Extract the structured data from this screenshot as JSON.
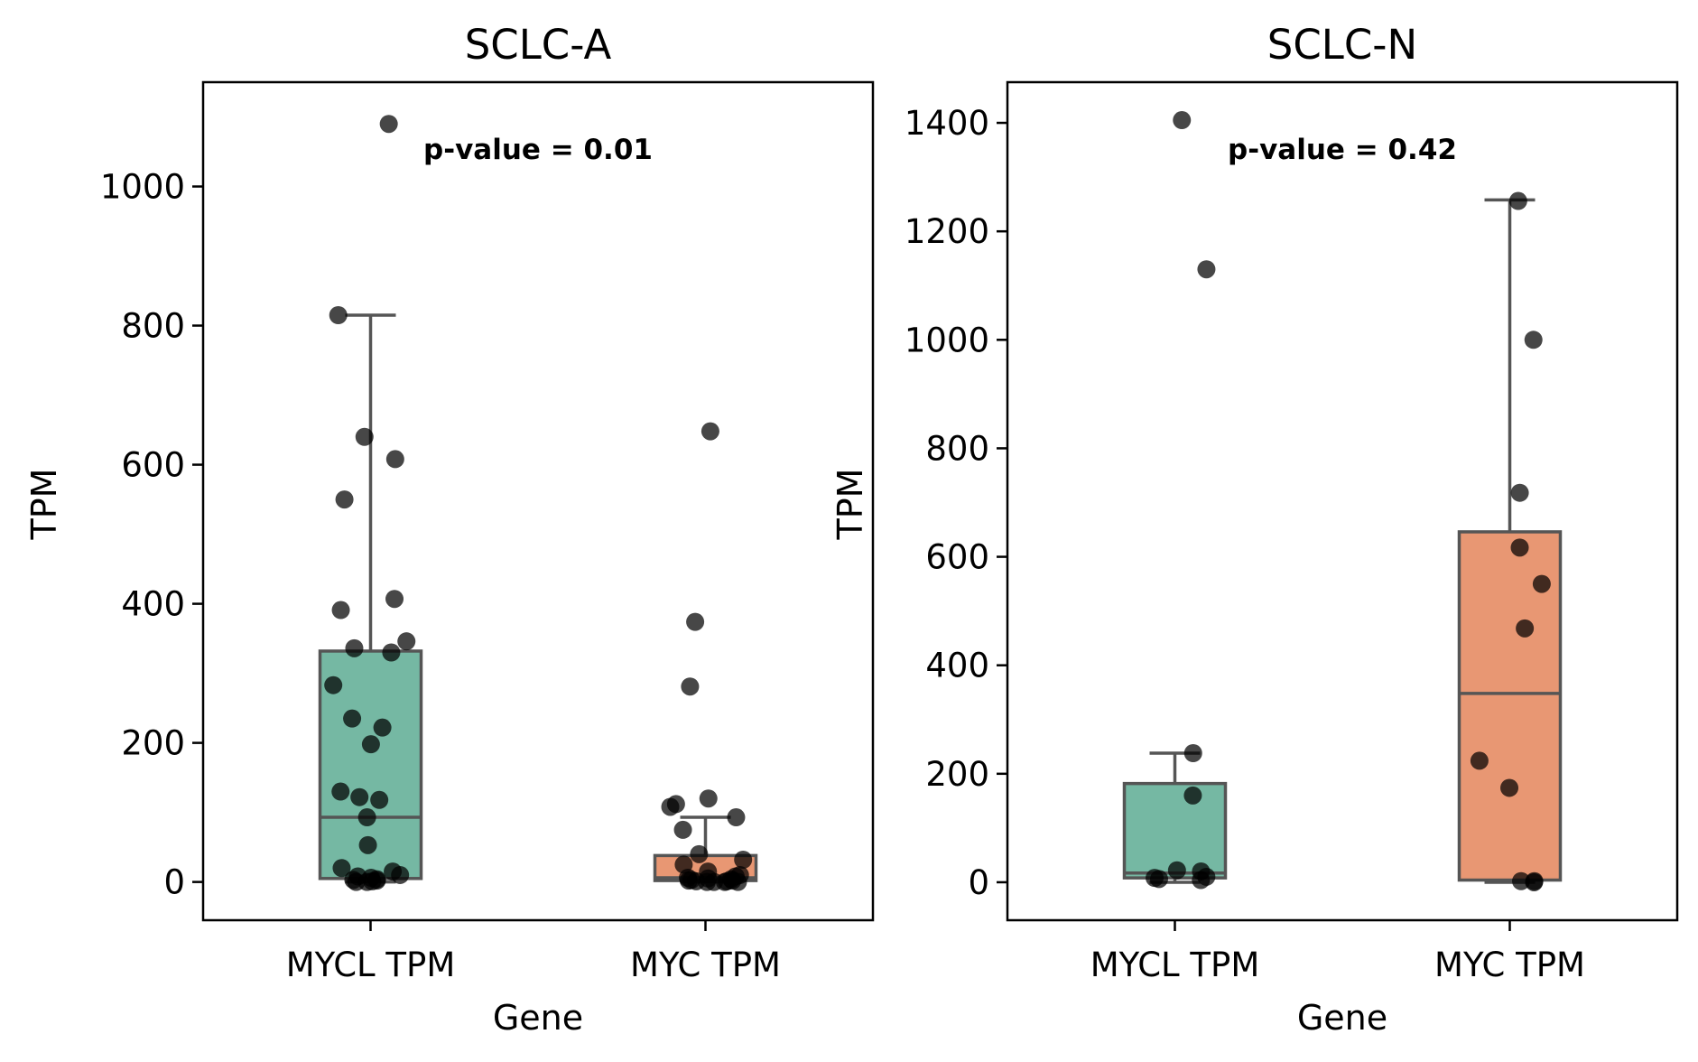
{
  "colors": {
    "mycl_box": "#75b8a3",
    "myc_box": "#e89773",
    "box_edge": "#555555",
    "point": "#000000"
  },
  "chart_data": [
    {
      "type": "box",
      "title": "SCLC-A",
      "xlabel": "Gene",
      "ylabel": "TPM",
      "categories": [
        "MYCL TPM",
        "MYC TPM"
      ],
      "ylim": [
        -55,
        1150
      ],
      "yticks": [
        0,
        200,
        400,
        600,
        800,
        1000
      ],
      "annotation": "p-value = 0.01",
      "boxes": [
        {
          "category": "MYCL TPM",
          "whisker_low": 0,
          "q1": 5,
          "median": 93,
          "q3": 332,
          "whisker_high": 815
        },
        {
          "category": "MYC TPM",
          "whisker_low": 0,
          "q1": 2,
          "median": 6,
          "q3": 38,
          "whisker_high": 93
        }
      ],
      "points": [
        {
          "category": "MYCL TPM",
          "values": [
            1090,
            815,
            640,
            608,
            550,
            407,
            391,
            346,
            336,
            330,
            283,
            235,
            222,
            198,
            130,
            122,
            118,
            93,
            53,
            20,
            15,
            10,
            8,
            6,
            4,
            3,
            2,
            1,
            0,
            0
          ]
        },
        {
          "category": "MYC TPM",
          "values": [
            648,
            374,
            281,
            120,
            112,
            108,
            93,
            75,
            40,
            32,
            25,
            15,
            10,
            8,
            6,
            5,
            4,
            3,
            2,
            2,
            1,
            1,
            0,
            0,
            0,
            0
          ]
        }
      ]
    },
    {
      "type": "box",
      "title": "SCLC-N",
      "xlabel": "Gene",
      "ylabel": "TPM",
      "categories": [
        "MYCL TPM",
        "MYC TPM"
      ],
      "ylim": [
        -70,
        1475
      ],
      "yticks": [
        0,
        200,
        400,
        600,
        800,
        1000,
        1200,
        1400
      ],
      "annotation": "p-value = 0.42",
      "boxes": [
        {
          "category": "MYCL TPM",
          "whisker_low": 0,
          "q1": 8,
          "median": 17,
          "q3": 182,
          "whisker_high": 238
        },
        {
          "category": "MYC TPM",
          "whisker_low": 0,
          "q1": 4,
          "median": 348,
          "q3": 646,
          "whisker_high": 1258
        }
      ],
      "points": [
        {
          "category": "MYCL TPM",
          "values": [
            1405,
            1130,
            238,
            160,
            22,
            20,
            10,
            8,
            6,
            4
          ]
        },
        {
          "category": "MYC TPM",
          "values": [
            1256,
            1000,
            718,
            617,
            550,
            468,
            224,
            174,
            2,
            2,
            0
          ]
        }
      ]
    }
  ]
}
